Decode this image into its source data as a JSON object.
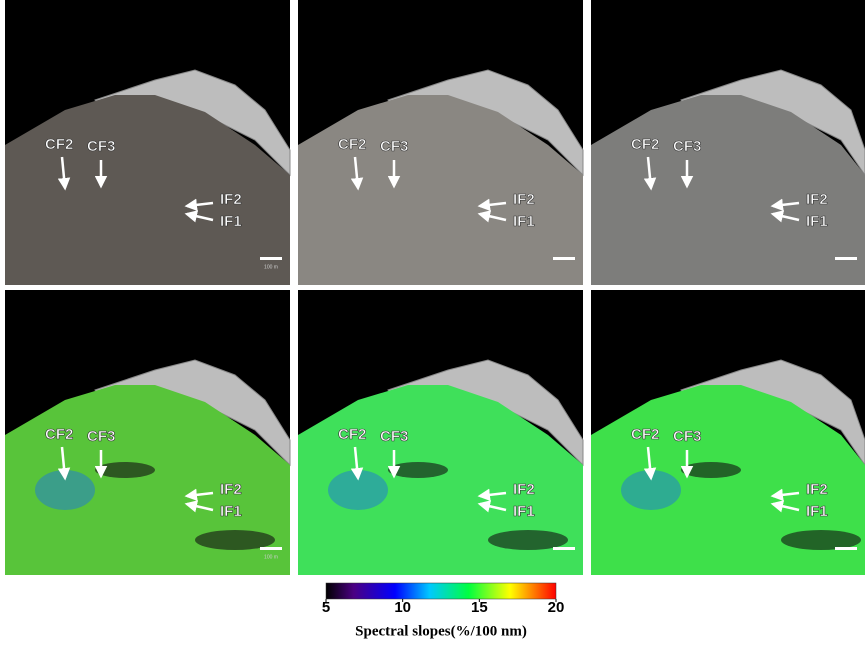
{
  "panels": [
    {
      "labels": [
        "CF2",
        "CF3",
        "IF2",
        "IF1"
      ],
      "scale_label": "100 m"
    },
    {
      "labels": [
        "CF2",
        "CF3",
        "IF2",
        "IF1"
      ]
    },
    {
      "labels": [
        "CF2",
        "CF3",
        "IF2",
        "IF1"
      ]
    },
    {
      "labels": [
        "CF2",
        "CF3",
        "IF2",
        "IF1"
      ],
      "scale_label": "100 m"
    },
    {
      "labels": [
        "CF2",
        "CF3",
        "IF2",
        "IF1"
      ]
    },
    {
      "labels": [
        "CF2",
        "CF3",
        "IF2",
        "IF1"
      ]
    }
  ],
  "colorbar": {
    "range": [
      5,
      20
    ],
    "ticks": [
      5,
      10,
      15,
      20
    ],
    "label": "Spectral slopes(%/100 nm)"
  }
}
